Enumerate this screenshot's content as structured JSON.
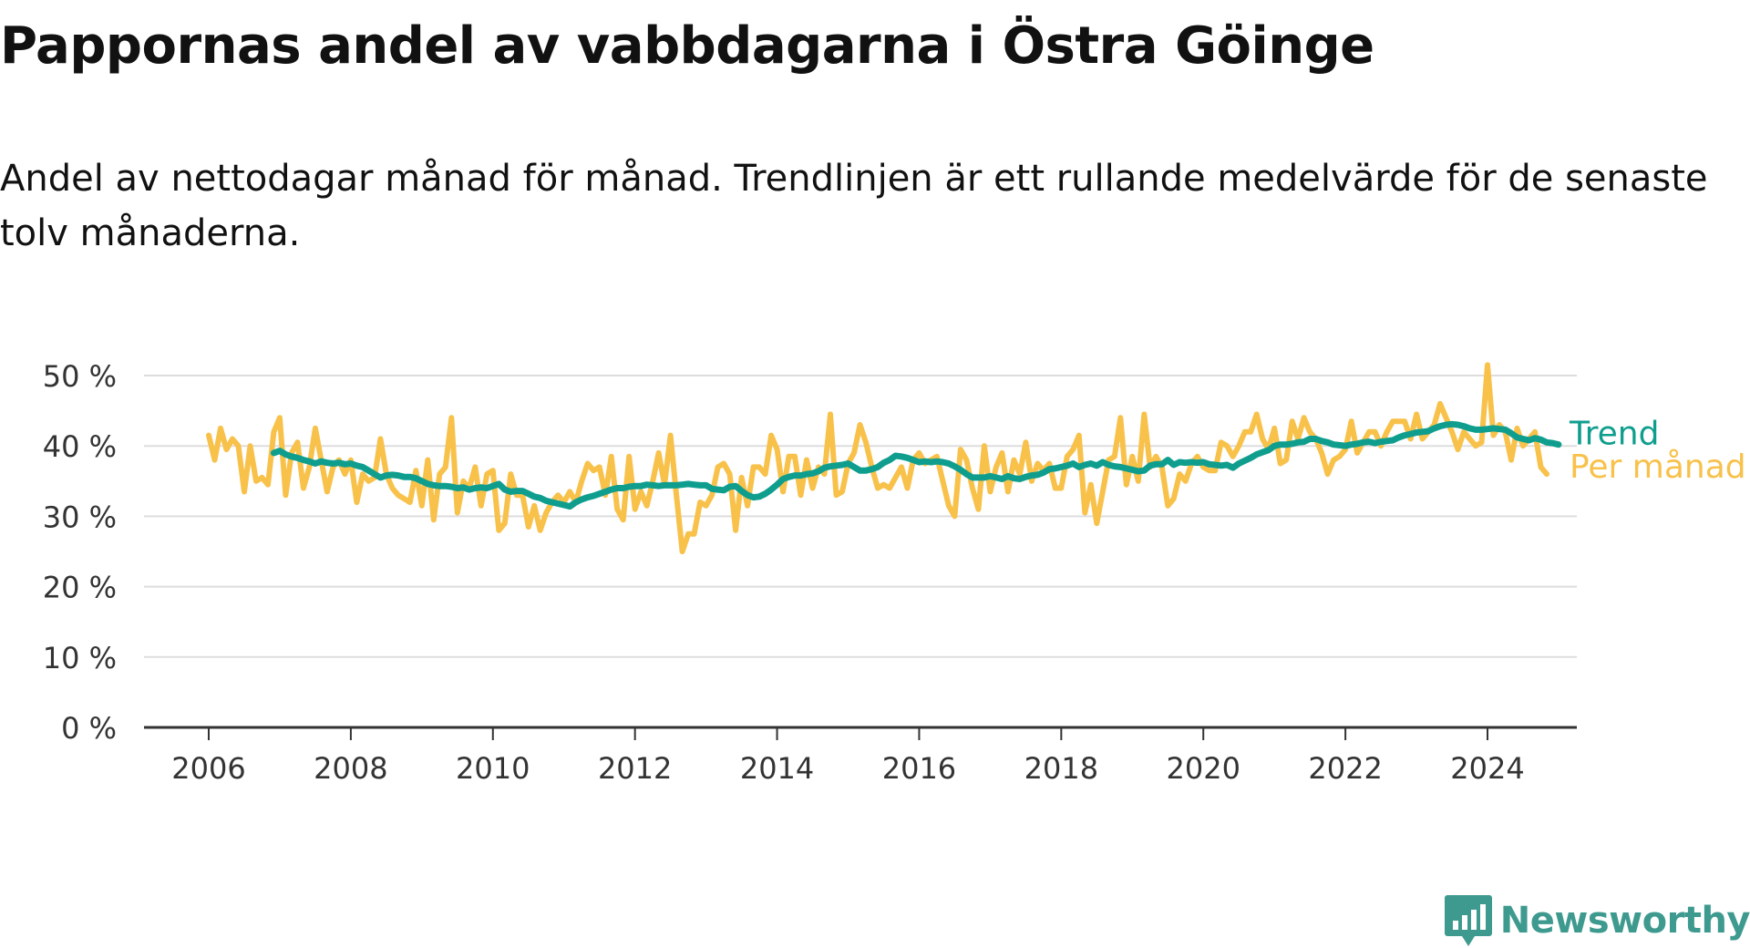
{
  "title": "Pappornas andel av vabbdagarna i Östra Göinge",
  "subtitle": "Andel av nettodagar månad för månad. Trendlinjen är ett rullande medelvärde för de senaste tolv månaderna.",
  "brand": "Newsworthy",
  "chart_data": {
    "type": "line",
    "title": "Pappornas andel av vabbdagarna i Östra Göinge",
    "subtitle": "Andel av nettodagar månad för månad. Trendlinjen är ett rullande medelvärde för de senaste tolv månaderna.",
    "xlabel": "",
    "ylabel": "",
    "xlim": [
      2006,
      2024.5
    ],
    "ylim": [
      0,
      50
    ],
    "x_ticks": [
      2006,
      2008,
      2010,
      2012,
      2014,
      2016,
      2018,
      2020,
      2022,
      2024
    ],
    "x_tick_labels": [
      "2006",
      "2008",
      "2010",
      "2012",
      "2014",
      "2016",
      "2018",
      "2020",
      "2022",
      "2024"
    ],
    "y_ticks": [
      0,
      10,
      20,
      30,
      40,
      50
    ],
    "y_tick_labels": [
      "0 %",
      "10 %",
      "20 %",
      "30 %",
      "40 %",
      "50 %"
    ],
    "grid": "horizontal",
    "legend": "direct labels at line ends",
    "colors": {
      "Per månad": "#f8c14a",
      "Trend": "#0f9e8e",
      "grid": "#dddddd",
      "axis": "#333333",
      "brand": "#3e9a8f"
    },
    "series": [
      {
        "name": "Per månad",
        "start": "2006-01",
        "frequency": "monthly",
        "values": [
          41.5,
          38,
          42.5,
          39.5,
          41,
          40,
          33.5,
          40,
          35,
          35.5,
          34.5,
          42,
          44,
          33,
          39,
          40.5,
          34,
          37,
          42.5,
          38,
          33.5,
          37,
          38,
          36,
          38,
          32,
          36,
          35,
          35.5,
          41,
          36,
          34,
          33,
          32.5,
          32,
          36.5,
          31.5,
          38,
          29.5,
          36,
          37,
          44,
          30.5,
          35,
          34,
          37,
          31.5,
          36,
          36.5,
          28,
          29,
          36,
          33,
          33,
          28.5,
          31.5,
          28,
          30.5,
          32,
          33,
          32,
          33.5,
          32,
          35,
          37.5,
          36.5,
          37,
          33,
          38.5,
          31,
          29.5,
          38.5,
          31,
          33.5,
          31.5,
          35,
          39,
          34.5,
          41.5,
          33,
          25,
          27.5,
          27.5,
          32,
          31.5,
          33,
          37,
          37.5,
          36,
          28,
          35.5,
          31.5,
          37,
          37,
          36,
          41.5,
          39.5,
          33.5,
          38.5,
          38.5,
          33,
          38,
          34,
          37,
          36,
          44.5,
          33,
          33.5,
          37.5,
          39,
          43,
          40.5,
          37,
          34,
          34.5,
          34,
          35.5,
          37,
          34,
          38,
          39,
          37.5,
          38,
          38.5,
          35,
          31.5,
          30,
          39.5,
          38,
          34,
          31,
          40,
          33.5,
          37,
          39,
          33.5,
          38,
          36,
          40.5,
          35,
          37.5,
          36.5,
          37.5,
          34,
          34,
          38.5,
          39.5,
          41.5,
          30.5,
          34.5,
          29,
          33.5,
          38,
          38.5,
          44,
          34.5,
          38.5,
          35,
          44.5,
          37,
          38.5,
          37,
          31.5,
          32.5,
          36,
          35,
          37.5,
          38.5,
          37,
          36.5,
          36.5,
          40.5,
          40,
          38.5,
          40,
          42,
          42,
          44.5,
          41,
          39.5,
          42.5,
          37.5,
          38,
          43.5,
          41,
          44,
          42,
          41,
          39,
          36,
          38,
          38.5,
          39.5,
          43.5,
          39,
          40.5,
          42,
          42,
          40,
          42,
          43.5,
          43.5,
          43.5,
          41,
          44.5,
          41,
          42,
          43,
          46,
          44,
          42,
          39.5,
          42,
          41,
          40,
          40.5,
          51.5,
          41.5,
          43,
          42,
          38,
          42.5,
          40,
          41,
          42,
          37,
          36
        ]
      },
      {
        "name": "Trend",
        "start": "2006-12",
        "frequency": "monthly",
        "values": [
          39,
          39.3,
          38.8,
          38.5,
          38.3,
          38,
          37.8,
          37.5,
          37.8,
          37.6,
          37.5,
          37.6,
          37.4,
          37.5,
          37.2,
          37,
          36.5,
          36,
          35.5,
          35.8,
          35.9,
          35.8,
          35.6,
          35.6,
          35.4,
          35,
          34.6,
          34.4,
          34.3,
          34.3,
          34.2,
          34,
          34.1,
          33.8,
          34,
          34.1,
          34,
          34.3,
          34.6,
          33.8,
          33.5,
          33.6,
          33.6,
          33.2,
          32.8,
          32.6,
          32.2,
          32,
          31.8,
          31.6,
          31.4,
          32,
          32.4,
          32.7,
          32.9,
          33.2,
          33.5,
          33.8,
          34,
          34,
          34.2,
          34.3,
          34.3,
          34.5,
          34.4,
          34.3,
          34.4,
          34.4,
          34.4,
          34.5,
          34.6,
          34.5,
          34.4,
          34.4,
          33.9,
          33.8,
          33.7,
          34.2,
          34.3,
          33.6,
          33,
          32.7,
          32.8,
          33.2,
          33.8,
          34.5,
          35.3,
          35.6,
          35.8,
          35.8,
          36,
          36.1,
          36.4,
          36.9,
          37.1,
          37.2,
          37.3,
          37.5,
          37,
          36.5,
          36.5,
          36.7,
          37,
          37.6,
          38,
          38.6,
          38.5,
          38.3,
          38,
          37.7,
          37.8,
          37.7,
          37.8,
          37.7,
          37.5,
          37.1,
          36.6,
          36,
          35.5,
          35.5,
          35.5,
          35.7,
          35.5,
          35.3,
          35.7,
          35.4,
          35.3,
          35.6,
          35.8,
          35.9,
          36.2,
          36.7,
          36.8,
          37,
          37.2,
          37.5,
          37,
          37.3,
          37.5,
          37.2,
          37.7,
          37.3,
          37.1,
          37,
          36.8,
          36.6,
          36.4,
          36.5,
          37.2,
          37.4,
          37.4,
          38,
          37.3,
          37.7,
          37.6,
          37.7,
          37.6,
          37.7,
          37.4,
          37.3,
          37.2,
          37.3,
          36.9,
          37.5,
          37.9,
          38.3,
          38.8,
          39.1,
          39.4,
          40,
          40.2,
          40.2,
          40.3,
          40.5,
          40.6,
          41,
          41,
          40.7,
          40.5,
          40.2,
          40.1,
          40,
          40.2,
          40.3,
          40.5,
          40.6,
          40.4,
          40.6,
          40.7,
          40.8,
          41.2,
          41.5,
          41.7,
          41.9,
          42,
          42.1,
          42.5,
          42.8,
          43,
          43.1,
          43,
          42.8,
          42.5,
          42.3,
          42.3,
          42.4,
          42.5,
          42.4,
          42.3,
          41.8,
          41.2,
          41,
          40.8,
          41.1,
          40.9,
          40.5,
          40.4,
          40.2
        ]
      }
    ]
  }
}
